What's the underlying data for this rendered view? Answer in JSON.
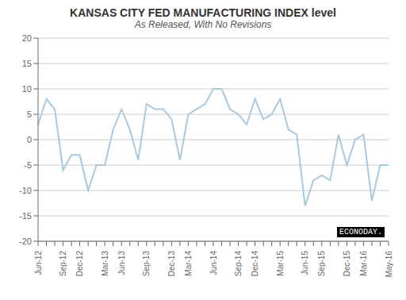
{
  "chart_data": {
    "type": "line",
    "title": "KANSAS CITY FED MANUFACTURING INDEX level",
    "subtitle": "As Released, With No Revisions",
    "categories": [
      "Jun-12",
      null,
      null,
      "Sep-12",
      null,
      "Dec-12",
      null,
      null,
      "Mar-13",
      null,
      "Jun-13",
      null,
      null,
      "Sep-13",
      null,
      null,
      "Dec-13",
      null,
      "Mar-14",
      null,
      null,
      "Jun-14",
      null,
      null,
      "Sep-14",
      null,
      "Dec-14",
      null,
      null,
      "Mar-15",
      null,
      null,
      "Jun-15",
      null,
      "Sep-15",
      null,
      null,
      "Dec-15",
      null,
      "Mar-16",
      null,
      null,
      "May-16"
    ],
    "values": [
      3,
      8,
      6,
      -6,
      -3,
      -3,
      -10,
      -5,
      -5,
      2,
      6,
      2,
      -4,
      7,
      6,
      6,
      4,
      -4,
      5,
      6,
      7,
      10,
      10,
      6,
      5,
      3,
      8,
      4,
      5,
      8,
      2,
      1,
      -13,
      -8,
      -7,
      -8,
      1,
      -5,
      0,
      1,
      -12,
      -5,
      -5
    ],
    "color": "#a8c8e0",
    "ylim": [
      -20,
      20
    ],
    "yticks": [
      -20,
      -15,
      -10,
      -5,
      0,
      5,
      10,
      15,
      20
    ],
    "grid": true,
    "annotations": [
      "ECONODAY."
    ]
  }
}
